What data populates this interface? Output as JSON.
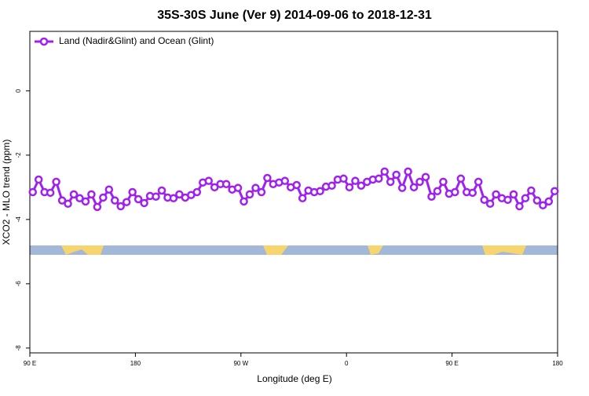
{
  "chart_data": {
    "type": "line",
    "title": "35S-30S June (Ver 9)   2014-09-06 to 2018-12-31",
    "xlabel": "Longitude (deg E)",
    "ylabel": "XCO2 - MLO trend (ppm)",
    "x": [
      92.5,
      97.5,
      102.5,
      107.5,
      112.5,
      117.5,
      122.5,
      127.5,
      132.5,
      137.5,
      142.5,
      147.5,
      152.5,
      157.5,
      162.5,
      167.5,
      172.5,
      177.5,
      182.5,
      187.5,
      192.5,
      197.5,
      202.5,
      207.5,
      212.5,
      217.5,
      222.5,
      227.5,
      232.5,
      237.5,
      242.5,
      247.5,
      252.5,
      257.5,
      262.5,
      267.5,
      272.5,
      277.5,
      282.5,
      287.5,
      292.5,
      297.5,
      302.5,
      307.5,
      312.5,
      317.5,
      322.5,
      327.5,
      332.5,
      337.5,
      342.5,
      347.5,
      352.5,
      357.5,
      362.5,
      367.5,
      372.5,
      377.5,
      382.5,
      387.5,
      392.5,
      397.5,
      402.5,
      407.5,
      412.5,
      417.5,
      422.5,
      427.5,
      432.5,
      437.5,
      442.5,
      447.5,
      452.5,
      457.5,
      462.5,
      467.5,
      472.5,
      477.5,
      482.5,
      487.5,
      492.5,
      497.5,
      502.5,
      507.5,
      512.5,
      517.5,
      522.5,
      527.5,
      532.5,
      537.5
    ],
    "series": [
      {
        "name": "Land (Nadir&Glint) and Ocean (Glint)",
        "color": "#a020f0",
        "values": [
          -3.15,
          -2.76,
          -3.15,
          -3.17,
          -2.83,
          -3.41,
          -3.51,
          -3.22,
          -3.34,
          -3.44,
          -3.22,
          -3.61,
          -3.32,
          -3.07,
          -3.41,
          -3.59,
          -3.46,
          -3.15,
          -3.37,
          -3.49,
          -3.27,
          -3.29,
          -3.1,
          -3.32,
          -3.34,
          -3.22,
          -3.32,
          -3.24,
          -3.15,
          -2.85,
          -2.8,
          -3.0,
          -2.9,
          -2.9,
          -3.07,
          -3.02,
          -3.44,
          -3.22,
          -3.02,
          -3.15,
          -2.71,
          -2.9,
          -2.85,
          -2.8,
          -3.0,
          -2.93,
          -3.34,
          -3.1,
          -3.15,
          -3.12,
          -2.98,
          -2.95,
          -2.76,
          -2.73,
          -3.0,
          -2.8,
          -2.95,
          -2.83,
          -2.76,
          -2.73,
          -2.51,
          -2.83,
          -2.61,
          -3.02,
          -2.51,
          -3.0,
          -2.83,
          -2.68,
          -3.29,
          -3.12,
          -2.83,
          -3.2,
          -3.15,
          -2.73,
          -3.15,
          -3.17,
          -2.83,
          -3.39,
          -3.51,
          -3.22,
          -3.34,
          -3.39,
          -3.22,
          -3.59,
          -3.34,
          -3.1,
          -3.41,
          -3.56,
          -3.44,
          -3.12
        ]
      }
    ],
    "xlim": [
      90,
      540
    ],
    "xticks": [
      {
        "value": 90,
        "label": "90 E"
      },
      180,
      {
        "value": 270,
        "label": "90 W"
      },
      {
        "value": 360,
        "label": "0"
      },
      {
        "value": 450,
        "label": "90 E"
      },
      {
        "value": 540,
        "label": "180"
      }
    ],
    "ylim": [
      -8.15,
      1.85
    ],
    "yticks": [
      0,
      -2,
      -4,
      -6,
      -8
    ],
    "legend": "top-left"
  }
}
